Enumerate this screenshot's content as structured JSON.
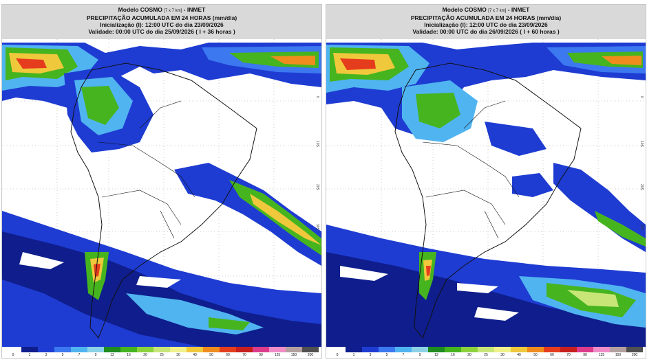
{
  "panels": [
    {
      "id": "left",
      "model_line": "Modelo COSMO",
      "model_res": "[7 x 7 km]",
      "model_org": "- INMET",
      "title": "PRECIPITAÇÃO ACUMULADA EM 24 HORAS (mm/dia)",
      "init": "Inicialização (I): 12:00 UTC do dia 23/09/2026",
      "valid": "Validade: 00:00 UTC do dia 25/09/2026 ( I + 36 horas )"
    },
    {
      "id": "right",
      "model_line": "Modelo COSMO",
      "model_res": "[7 x 7 km]",
      "model_org": "- INMET",
      "title": "PRECIPITAÇÃO ACUMULADA EM 24 HORAS (mm/dia)",
      "init": "Inicialização (I): 12:00 UTC do dia 23/09/2026",
      "valid": "Validade: 00:00 UTC do dia 26/09/2026 ( I + 60 horas )"
    }
  ],
  "colorbar": {
    "labels": [
      "0",
      "1",
      "3",
      "5",
      "7",
      "9",
      "12",
      "16",
      "20",
      "25",
      "30",
      "40",
      "50",
      "60",
      "70",
      "90",
      "125",
      "150",
      "200"
    ],
    "colors": [
      "#ffffff",
      "#0f1e8c",
      "#1e3cd2",
      "#3c78f0",
      "#50b4f0",
      "#8cd2e6",
      "#1e8c1e",
      "#46b41e",
      "#8cd23c",
      "#c8e678",
      "#f0f08c",
      "#f0c83c",
      "#f08c1e",
      "#e63c1e",
      "#c81e1e",
      "#dc3c8c",
      "#f08cc8",
      "#b4a0a0",
      "#505050"
    ]
  },
  "lat_labels": [
    "0",
    "10S",
    "20S",
    "30S"
  ],
  "colors": {
    "ocean": "#ffffff",
    "land_outline": "#111111",
    "header_bg": "#d9d9d9"
  }
}
